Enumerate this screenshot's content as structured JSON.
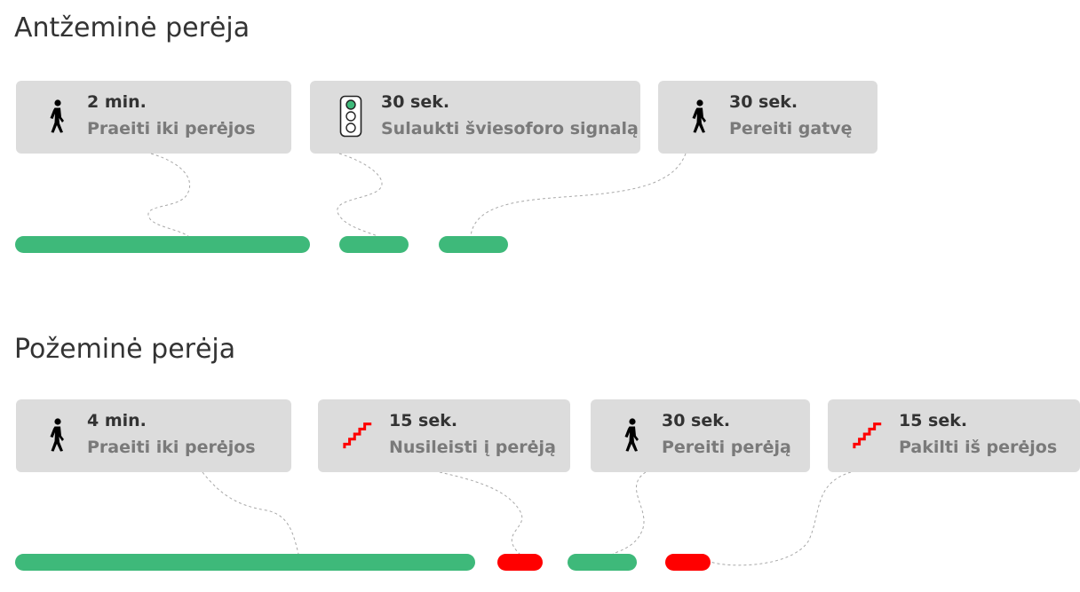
{
  "colors": {
    "walk_bar": "#3eb97a",
    "stairs_bar": "#ff0000",
    "card_bg": "#dcdcdc",
    "signal_green": "#3eb97a",
    "stairs_icon": "#ff0000"
  },
  "above": {
    "title": "Antžeminė perėja",
    "steps": [
      {
        "icon": "pedestrian-icon",
        "time": "2 min.",
        "desc": "Praeiti iki perėjos"
      },
      {
        "icon": "traffic-light-icon",
        "time": "30 sek.",
        "desc": "Sulaukti šviesoforo signalą"
      },
      {
        "icon": "pedestrian-icon",
        "time": "30 sek.",
        "desc": "Pereiti gatvę"
      }
    ],
    "segments": [
      {
        "kind": "walk"
      },
      {
        "kind": "wait"
      },
      {
        "kind": "walk"
      }
    ]
  },
  "below": {
    "title": "Požeminė perėja",
    "steps": [
      {
        "icon": "pedestrian-icon",
        "time": "4 min.",
        "desc": "Praeiti iki perėjos"
      },
      {
        "icon": "stairs-down-icon",
        "time": "15 sek.",
        "desc": "Nusileisti į perėją"
      },
      {
        "icon": "pedestrian-icon",
        "time": "30 sek.",
        "desc": "Pereiti perėją"
      },
      {
        "icon": "stairs-up-icon",
        "time": "15 sek.",
        "desc": "Pakilti iš perėjos"
      }
    ],
    "segments": [
      {
        "kind": "walk"
      },
      {
        "kind": "stairs"
      },
      {
        "kind": "walk"
      },
      {
        "kind": "stairs"
      }
    ]
  }
}
